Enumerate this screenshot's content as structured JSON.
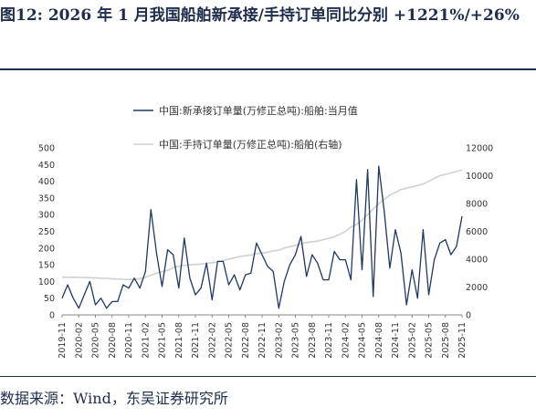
{
  "title": "图12: 2026 年 1 月我国船舶新承接/手持订单同比分别 +1221%/+26%",
  "source": "数据来源：Wind，东吴证券研究所",
  "chart_data": {
    "type": "line",
    "x": [
      "2019-11",
      "2019-12",
      "2020-01",
      "2020-02",
      "2020-03",
      "2020-04",
      "2020-05",
      "2020-06",
      "2020-07",
      "2020-08",
      "2020-09",
      "2020-10",
      "2020-11",
      "2020-12",
      "2021-01",
      "2021-02",
      "2021-03",
      "2021-04",
      "2021-05",
      "2021-06",
      "2021-07",
      "2021-08",
      "2021-09",
      "2021-10",
      "2021-11",
      "2021-12",
      "2022-01",
      "2022-02",
      "2022-03",
      "2022-04",
      "2022-05",
      "2022-06",
      "2022-07",
      "2022-08",
      "2022-09",
      "2022-10",
      "2022-11",
      "2022-12",
      "2023-01",
      "2023-02",
      "2023-03",
      "2023-04",
      "2023-05",
      "2023-06",
      "2023-07",
      "2023-08",
      "2023-09",
      "2023-10",
      "2023-11",
      "2023-12",
      "2024-01",
      "2024-02",
      "2024-03",
      "2024-04",
      "2024-05",
      "2024-06",
      "2024-07",
      "2024-08",
      "2024-09",
      "2024-10",
      "2024-11",
      "2024-12",
      "2025-01",
      "2025-02",
      "2025-03",
      "2025-04",
      "2025-05",
      "2025-06",
      "2025-07",
      "2025-08",
      "2025-09",
      "2025-10",
      "2025-11"
    ],
    "x_tick_labels": [
      "2019-11",
      "2020-02",
      "2020-05",
      "2020-08",
      "2020-11",
      "2021-02",
      "2021-05",
      "2021-08",
      "2021-11",
      "2022-02",
      "2022-05",
      "2022-08",
      "2022-11",
      "2023-02",
      "2023-05",
      "2023-08",
      "2023-11",
      "2024-02",
      "2024-05",
      "2024-08",
      "2024-11",
      "2025-02",
      "2025-05",
      "2025-08",
      "2025-11"
    ],
    "series": [
      {
        "name": "中国:新承接订单量(万修正总吨):船舶:当月值",
        "axis": "left",
        "color": "#1f3864",
        "values": [
          50,
          90,
          50,
          20,
          60,
          100,
          30,
          50,
          20,
          40,
          40,
          90,
          80,
          110,
          80,
          130,
          315,
          185,
          85,
          195,
          180,
          80,
          230,
          110,
          60,
          80,
          155,
          45,
          160,
          160,
          90,
          120,
          75,
          120,
          125,
          215,
          180,
          145,
          130,
          20,
          100,
          150,
          180,
          235,
          115,
          180,
          155,
          105,
          105,
          190,
          165,
          165,
          105,
          405,
          135,
          435,
          55,
          445,
          310,
          140,
          255,
          185,
          30,
          135,
          50,
          255,
          60,
          165,
          215,
          225,
          180,
          205,
          295
        ]
      },
      {
        "name": "中国:手持订单量(万修正总吨):船舶(右轴)",
        "axis": "right",
        "color": "#d0d0d0",
        "values": [
          2700,
          2700,
          2700,
          2690,
          2680,
          2670,
          2650,
          2630,
          2620,
          2600,
          2580,
          2560,
          2540,
          2560,
          2600,
          2700,
          2850,
          3000,
          3100,
          3200,
          3400,
          3500,
          3550,
          3600,
          3620,
          3650,
          3700,
          3750,
          3800,
          3900,
          4000,
          4100,
          4200,
          4250,
          4300,
          4400,
          4450,
          4500,
          4600,
          4650,
          4800,
          4900,
          5000,
          5100,
          5200,
          5250,
          5300,
          5400,
          5500,
          5600,
          5800,
          6000,
          6300,
          6500,
          6800,
          7200,
          7600,
          8000,
          8300,
          8600,
          8800,
          9000,
          9100,
          9200,
          9300,
          9400,
          9600,
          9800,
          10000,
          10100,
          10200,
          10300,
          10400
        ]
      }
    ],
    "ylim_left": [
      0,
      500
    ],
    "yticks_left": [
      0,
      50,
      100,
      150,
      200,
      250,
      300,
      350,
      400,
      450,
      500
    ],
    "ylim_right": [
      0,
      12000
    ],
    "yticks_right": [
      0,
      2000,
      4000,
      6000,
      8000,
      10000,
      12000
    ],
    "legend_position": "top-center",
    "grid": false
  }
}
